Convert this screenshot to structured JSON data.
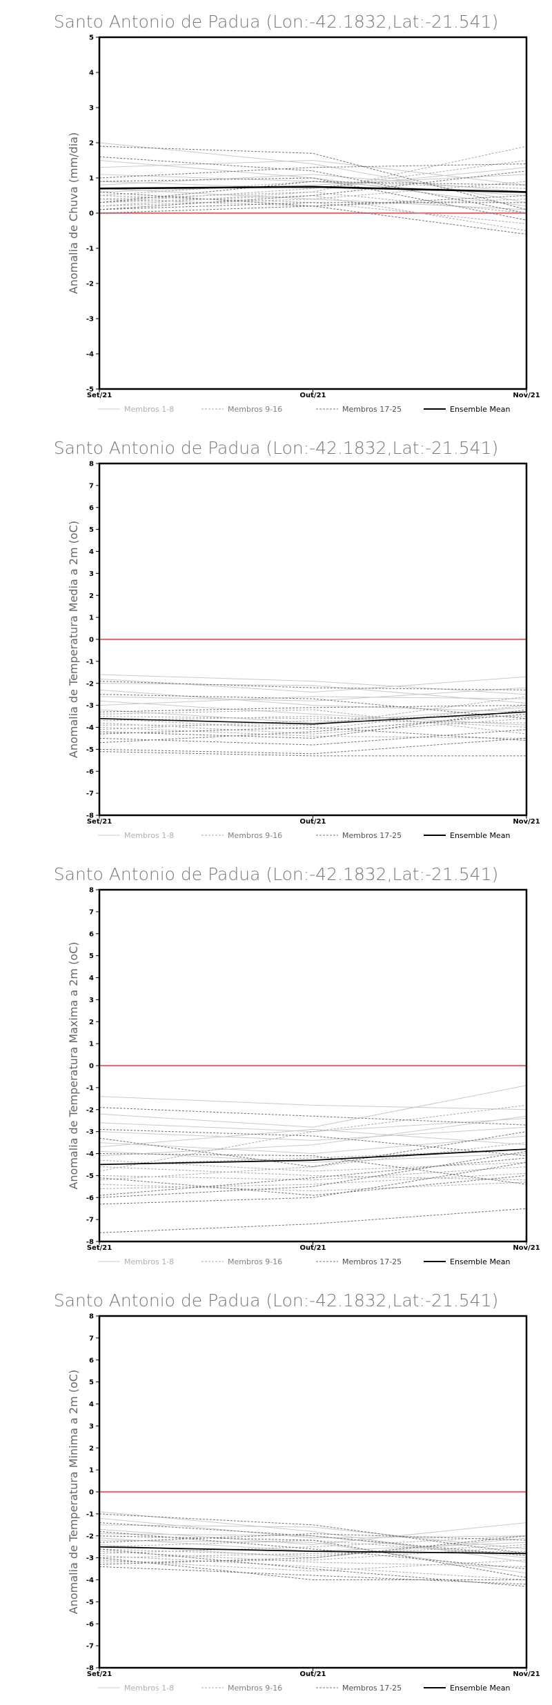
{
  "colors": {
    "zero_line": "#e0707a",
    "members_1_8": "#c8c8c8",
    "members_9_16": "#a8a8a8",
    "members_17_25": "#707070",
    "mean": "#000000",
    "legend_text_1_8": "#b0b0b0",
    "legend_text_9_16": "#808080",
    "legend_text_17_25": "#505050"
  },
  "chart_data": [
    {
      "type": "line",
      "title": "Santo Antonio de Padua (Lon:-42.1832,Lat:-21.541)",
      "ylabel": "Anomalia de Chuva (mm/dia)",
      "ylim": [
        -5,
        5
      ],
      "yticks": [
        "5",
        "4",
        "3",
        "2",
        "1",
        "0",
        "-1",
        "-2",
        "-3",
        "-4",
        "-5"
      ],
      "categories": [
        "Set/21",
        "Out/21",
        "Nov/21"
      ],
      "legend": [
        "Membros 1-8",
        "Membros 9-16",
        "Membros 17-25",
        "Ensemble Mean"
      ],
      "members": [
        [
          2.0,
          1.4,
          0.3
        ],
        [
          1.5,
          1.0,
          0.2
        ],
        [
          1.3,
          1.5,
          0.8
        ],
        [
          1.1,
          0.9,
          0.5
        ],
        [
          0.9,
          0.7,
          1.3
        ],
        [
          0.8,
          1.1,
          0.6
        ],
        [
          0.7,
          0.4,
          0.1
        ],
        [
          0.6,
          0.8,
          1.1
        ],
        [
          0.5,
          0.3,
          -0.3
        ],
        [
          0.5,
          0.9,
          0.7
        ],
        [
          0.4,
          0.6,
          1.9
        ],
        [
          0.4,
          0.2,
          0.4
        ],
        [
          0.3,
          0.5,
          -0.5
        ],
        [
          0.3,
          0.7,
          1.5
        ],
        [
          0.2,
          0.4,
          0.9
        ],
        [
          0.2,
          0.6,
          0.0
        ],
        [
          0.1,
          0.3,
          0.3
        ],
        [
          0.1,
          0.5,
          1.2
        ],
        [
          0.0,
          0.2,
          0.5
        ],
        [
          1.9,
          1.7,
          0.1
        ],
        [
          1.6,
          1.2,
          0.0
        ],
        [
          0.9,
          1.0,
          -0.2
        ],
        [
          0.6,
          0.2,
          -0.6
        ],
        [
          0.3,
          0.9,
          0.8
        ],
        [
          1.0,
          1.3,
          1.4
        ]
      ],
      "mean": [
        0.7,
        0.75,
        0.6
      ],
      "mean_width": 2.6
    },
    {
      "type": "line",
      "title": "Santo Antonio de Padua (Lon:-42.1832,Lat:-21.541)",
      "ylabel": "Anomalia de Temperatura Media a 2m (oC)",
      "ylim": [
        -8,
        8
      ],
      "yticks": [
        "8",
        "7",
        "6",
        "5",
        "4",
        "3",
        "2",
        "1",
        "0",
        "-1",
        "-2",
        "-3",
        "-4",
        "-5",
        "-6",
        "-7",
        "-8"
      ],
      "categories": [
        "Set/21",
        "Out/21",
        "Nov/21"
      ],
      "legend": [
        "Membros 1-8",
        "Membros 9-16",
        "Membros 17-25",
        "Ensemble Mean"
      ],
      "members": [
        [
          -1.6,
          -1.9,
          -2.5
        ],
        [
          -1.8,
          -2.4,
          -1.7
        ],
        [
          -2.0,
          -2.1,
          -2.9
        ],
        [
          -2.3,
          -3.0,
          -3.3
        ],
        [
          -2.6,
          -2.8,
          -2.2
        ],
        [
          -2.8,
          -3.4,
          -3.9
        ],
        [
          -3.0,
          -2.6,
          -2.7
        ],
        [
          -3.2,
          -3.8,
          -3.1
        ],
        [
          -3.4,
          -3.2,
          -4.3
        ],
        [
          -3.5,
          -3.6,
          -3.5
        ],
        [
          -3.6,
          -4.1,
          -3.0
        ],
        [
          -3.7,
          -3.5,
          -4.0
        ],
        [
          -3.8,
          -4.3,
          -3.6
        ],
        [
          -3.9,
          -3.9,
          -2.6
        ],
        [
          -4.0,
          -4.4,
          -4.5
        ],
        [
          -4.1,
          -3.7,
          -3.8
        ],
        [
          -4.2,
          -4.5,
          -3.2
        ],
        [
          -4.3,
          -4.0,
          -4.6
        ],
        [
          -4.5,
          -4.8,
          -4.1
        ],
        [
          -4.7,
          -4.2,
          -3.4
        ],
        [
          -5.0,
          -5.2,
          -4.5
        ],
        [
          -5.1,
          -5.3,
          -5.3
        ],
        [
          -1.9,
          -2.2,
          -2.3
        ],
        [
          -2.5,
          -2.7,
          -3.6
        ],
        [
          -3.3,
          -3.1,
          -3.0
        ]
      ],
      "mean": [
        -3.6,
        -3.85,
        -3.3
      ],
      "mean_width": 1.6
    },
    {
      "type": "line",
      "title": "Santo Antonio de Padua (Lon:-42.1832,Lat:-21.541)",
      "ylabel": "Anomalia de Temperatura Maxima a 2m (oC)",
      "ylim": [
        -8,
        8
      ],
      "yticks": [
        "8",
        "7",
        "6",
        "5",
        "4",
        "3",
        "2",
        "1",
        "0",
        "-1",
        "-2",
        "-3",
        "-4",
        "-5",
        "-6",
        "-7",
        "-8"
      ],
      "categories": [
        "Set/21",
        "Out/21",
        "Nov/21"
      ],
      "legend": [
        "Membros 1-8",
        "Membros 9-16",
        "Membros 17-25",
        "Ensemble Mean"
      ],
      "members": [
        [
          -1.4,
          -1.8,
          -2.0
        ],
        [
          -2.2,
          -2.8,
          -0.9
        ],
        [
          -2.6,
          -3.0,
          -2.4
        ],
        [
          -3.0,
          -3.4,
          -2.8
        ],
        [
          -3.5,
          -4.0,
          -3.2
        ],
        [
          -3.7,
          -2.9,
          -3.6
        ],
        [
          -3.9,
          -4.4,
          -4.0
        ],
        [
          -4.1,
          -3.6,
          -2.3
        ],
        [
          -4.3,
          -4.8,
          -4.4
        ],
        [
          -4.5,
          -4.2,
          -3.8
        ],
        [
          -4.6,
          -5.0,
          -5.2
        ],
        [
          -4.8,
          -3.0,
          -1.8
        ],
        [
          -5.0,
          -5.2,
          -4.6
        ],
        [
          -5.2,
          -4.6,
          -3.5
        ],
        [
          -5.4,
          -5.7,
          -5.3
        ],
        [
          -5.6,
          -5.4,
          -4.9
        ],
        [
          -5.9,
          -5.1,
          -4.2
        ],
        [
          -6.3,
          -6.0,
          -4.4
        ],
        [
          -7.6,
          -7.2,
          -6.5
        ],
        [
          -1.9,
          -2.3,
          -2.7
        ],
        [
          -2.9,
          -3.2,
          -4.1
        ],
        [
          -3.3,
          -4.6,
          -3.0
        ],
        [
          -4.0,
          -4.1,
          -5.4
        ],
        [
          -5.1,
          -5.9,
          -5.0
        ],
        [
          -6.0,
          -5.5,
          -3.9
        ]
      ],
      "mean": [
        -4.5,
        -4.3,
        -3.8
      ],
      "mean_width": 1.8
    },
    {
      "type": "line",
      "title": "Santo Antonio de Padua (Lon:-42.1832,Lat:-21.541)",
      "ylabel": "Anomalia de Temperatura Minima a 2m (oC)",
      "ylim": [
        -8,
        8
      ],
      "yticks": [
        "8",
        "7",
        "6",
        "5",
        "4",
        "3",
        "2",
        "1",
        "0",
        "-1",
        "-2",
        "-3",
        "-4",
        "-5",
        "-6",
        "-7",
        "-8"
      ],
      "categories": [
        "Set/21",
        "Out/21",
        "Nov/21"
      ],
      "legend": [
        "Membros 1-8",
        "Membros 9-16",
        "Membros 17-25",
        "Ensemble Mean"
      ],
      "members": [
        [
          -0.9,
          -1.8,
          -3.2
        ],
        [
          -1.2,
          -2.1,
          -2.0
        ],
        [
          -1.5,
          -1.6,
          -2.6
        ],
        [
          -1.7,
          -2.4,
          -1.4
        ],
        [
          -1.9,
          -2.0,
          -3.0
        ],
        [
          -2.1,
          -2.7,
          -2.3
        ],
        [
          -2.2,
          -2.3,
          -3.7
        ],
        [
          -2.4,
          -3.0,
          -2.1
        ],
        [
          -2.5,
          -2.2,
          -2.9
        ],
        [
          -2.6,
          -2.9,
          -2.4
        ],
        [
          -2.7,
          -3.2,
          -3.4
        ],
        [
          -2.8,
          -2.5,
          -2.0
        ],
        [
          -2.9,
          -3.4,
          -4.0
        ],
        [
          -3.0,
          -2.8,
          -2.7
        ],
        [
          -3.1,
          -3.6,
          -3.1
        ],
        [
          -3.2,
          -3.1,
          -2.5
        ],
        [
          -3.4,
          -3.8,
          -4.2
        ],
        [
          -1.0,
          -1.5,
          -2.8
        ],
        [
          -1.8,
          -2.6,
          -3.5
        ],
        [
          -2.3,
          -1.9,
          -2.2
        ],
        [
          -2.6,
          -3.5,
          -4.3
        ],
        [
          -3.0,
          -4.0,
          -4.0
        ],
        [
          -3.3,
          -3.0,
          -2.0
        ],
        [
          -2.0,
          -2.2,
          -3.9
        ],
        [
          -1.4,
          -2.0,
          -2.9
        ]
      ],
      "mean": [
        -2.5,
        -2.7,
        -2.8
      ],
      "mean_width": 1.8
    }
  ]
}
